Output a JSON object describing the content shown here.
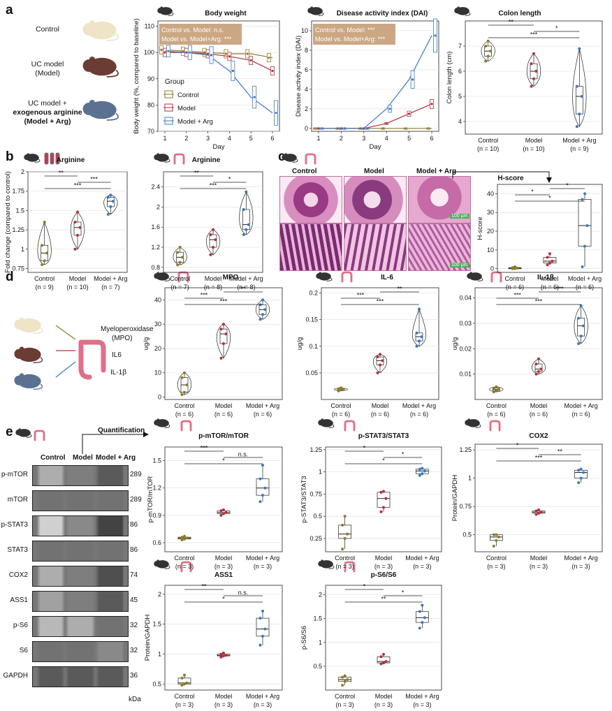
{
  "panel_letters": [
    "a",
    "b",
    "c",
    "d",
    "e"
  ],
  "colors": {
    "control": "#8c7a2a",
    "model": "#b2303a",
    "arg": "#3a78c0",
    "hl": "#c8a27c"
  },
  "panel_a": {
    "groups_side": {
      "control": "Control",
      "model_l1": "UC model",
      "model_l2": "(Model)",
      "arg_l1": "UC model +",
      "arg_l2": "exogenous arginine",
      "arg_l3": "(Model + Arg)"
    }
  },
  "chart_data": [
    {
      "id": "bw",
      "type": "line",
      "title": "Body weight",
      "xlabel": "Day",
      "ylabel": "Body weight (%, compared to baseline)",
      "x": [
        1,
        2,
        3,
        4,
        5,
        6
      ],
      "ylim": [
        70,
        112
      ],
      "yticks": [
        70,
        80,
        90,
        100,
        110
      ],
      "series": [
        {
          "name": "Control",
          "values": [
            101,
            100.5,
            100,
            99.5,
            99.5,
            98
          ]
        },
        {
          "name": "Model",
          "values": [
            100,
            100,
            99.5,
            98.5,
            97,
            93
          ]
        },
        {
          "name": "Model + Arg",
          "values": [
            100.5,
            100,
            99,
            93,
            83,
            77
          ]
        }
      ],
      "legend_title": "Group",
      "legend": [
        "Control",
        "Model",
        "Model + Arg"
      ],
      "annotation": [
        "Control vs. Model: n.s.",
        "Model vs. Model+Arg: ***"
      ]
    },
    {
      "id": "dai",
      "type": "line",
      "title": "Disease activity index (DAI)",
      "xlabel": "Day",
      "ylabel": "Disease activity index (DAI)",
      "x": [
        1,
        2,
        3,
        4,
        5,
        6
      ],
      "ylim": [
        -0.3,
        11
      ],
      "yticks": [
        0,
        2,
        4,
        6,
        8,
        10
      ],
      "series": [
        {
          "name": "Control",
          "values": [
            0,
            0,
            0,
            0,
            0,
            0
          ]
        },
        {
          "name": "Model",
          "values": [
            0,
            0,
            0,
            0.5,
            1.5,
            2.5
          ]
        },
        {
          "name": "Model + Arg",
          "values": [
            0,
            0,
            0,
            2,
            5,
            9.5
          ]
        }
      ],
      "annotation": [
        "Control vs. Model: ***",
        "Model vs. Model+Arg: ***"
      ]
    },
    {
      "id": "colon",
      "type": "violin",
      "title": "Colon length",
      "ylabel": "Colon length (cm)",
      "ylim": [
        3.5,
        8
      ],
      "yticks": [
        4,
        5,
        6,
        7
      ],
      "categories": [
        "Control",
        "Model",
        "Model + Arg"
      ],
      "n": [
        "(n = 10)",
        "(n = 10)",
        "(n = 9)"
      ],
      "box": [
        [
          6.4,
          6.6,
          6.8,
          7.0,
          7.2
        ],
        [
          5.4,
          5.7,
          6.0,
          6.3,
          6.7
        ],
        [
          3.8,
          4.3,
          5.0,
          5.4,
          6.9
        ]
      ],
      "sig": [
        {
          "a": 0,
          "b": 1,
          "t": "**"
        },
        {
          "a": 1,
          "b": 2,
          "t": "*"
        },
        {
          "a": 0,
          "b": 2,
          "t": "***"
        }
      ]
    },
    {
      "id": "argser",
      "type": "violin",
      "title": "Arginine",
      "ylabel": "Fold change (compared to control)",
      "ylim": [
        0.7,
        2.0
      ],
      "yticks": [
        0.75,
        1.0,
        1.25,
        1.5,
        1.75,
        2.0
      ],
      "categories": [
        "Control",
        "Model",
        "Model + Arg"
      ],
      "n": [
        "(n = 9)",
        "(n = 10)",
        "(n = 7)"
      ],
      "box": [
        [
          0.8,
          0.85,
          0.95,
          1.05,
          1.35
        ],
        [
          1.0,
          1.18,
          1.28,
          1.35,
          1.48
        ],
        [
          1.45,
          1.55,
          1.62,
          1.67,
          1.7
        ]
      ],
      "sig": [
        {
          "a": 0,
          "b": 1,
          "t": "**"
        },
        {
          "a": 1,
          "b": 2,
          "t": "***"
        },
        {
          "a": 0,
          "b": 2,
          "t": "***"
        }
      ]
    },
    {
      "id": "argcol",
      "type": "violin",
      "title": "Arginine",
      "ylabel": "",
      "ylim": [
        0.7,
        2.7
      ],
      "yticks": [
        0.8,
        1.2,
        1.6,
        2.0,
        2.4
      ],
      "categories": [
        "Control",
        "Model",
        "Model + Arg"
      ],
      "n": [
        "(n = 7)",
        "(n = 8)",
        "(n = 8)"
      ],
      "box": [
        [
          0.85,
          0.9,
          1.0,
          1.1,
          1.2
        ],
        [
          1.05,
          1.2,
          1.35,
          1.45,
          1.55
        ],
        [
          1.45,
          1.55,
          1.65,
          1.95,
          2.3
        ]
      ],
      "sig": [
        {
          "a": 0,
          "b": 1,
          "t": "**"
        },
        {
          "a": 1,
          "b": 2,
          "t": "*"
        },
        {
          "a": 0,
          "b": 2,
          "t": "***"
        }
      ]
    },
    {
      "id": "hscore",
      "type": "box",
      "title": "H-score",
      "ylabel": "H-score",
      "ylim": [
        -2,
        45
      ],
      "yticks": [
        0,
        10,
        20,
        30,
        40
      ],
      "categories": [
        "Control",
        "Model",
        "Model + Arg"
      ],
      "n": [
        "(n = 6)",
        "(n = 6)",
        "(n = 6)"
      ],
      "box": [
        [
          0,
          0,
          0.3,
          0.5,
          1
        ],
        [
          2,
          3,
          4,
          6,
          8
        ],
        [
          1,
          12,
          23,
          37,
          40
        ]
      ],
      "sig": [
        {
          "a": 1,
          "b": 2,
          "t": "*"
        },
        {
          "a": 0,
          "b": 1,
          "t": "*"
        },
        {
          "a": 0,
          "b": 2,
          "t": "*"
        }
      ]
    },
    {
      "id": "mpo",
      "type": "violin",
      "title": "MPO",
      "ylabel": "ug/g",
      "ylim": [
        -1,
        45
      ],
      "yticks": [
        0,
        10,
        20,
        30,
        40
      ],
      "categories": [
        "Control",
        "Model",
        "Model + Arg"
      ],
      "n": [
        "(n = 6)",
        "(n = 6)",
        "(n = 6)"
      ],
      "box": [
        [
          1,
          2,
          5,
          8,
          10
        ],
        [
          16,
          22,
          26,
          28,
          30
        ],
        [
          32,
          34,
          36,
          38,
          40
        ]
      ],
      "sig": [
        {
          "a": 1,
          "b": 2,
          "t": "**"
        },
        {
          "a": 0,
          "b": 1,
          "t": "***"
        },
        {
          "a": 0,
          "b": 2,
          "t": "***"
        }
      ]
    },
    {
      "id": "il6",
      "type": "violin",
      "title": "IL-6",
      "ylabel": "ug/g",
      "ylim": [
        0,
        0.21
      ],
      "yticks": [
        0.05,
        0.1,
        0.15,
        0.2
      ],
      "categories": [
        "Control",
        "Model",
        "Model + Arg"
      ],
      "n": [
        "(n = 6)",
        "(n = 6)",
        "(n = 6)"
      ],
      "box": [
        [
          0.016,
          0.018,
          0.019,
          0.02,
          0.022
        ],
        [
          0.05,
          0.065,
          0.073,
          0.08,
          0.085
        ],
        [
          0.1,
          0.11,
          0.118,
          0.125,
          0.17
        ]
      ],
      "sig": [
        {
          "a": 1,
          "b": 2,
          "t": "**"
        },
        {
          "a": 0,
          "b": 1,
          "t": "***"
        },
        {
          "a": 0,
          "b": 2,
          "t": "***"
        }
      ]
    },
    {
      "id": "il1b",
      "type": "violin",
      "title": "IL-1β",
      "ylabel": "ug/g",
      "ylim": [
        0,
        0.044
      ],
      "yticks": [
        0.01,
        0.02,
        0.03,
        0.04
      ],
      "categories": [
        "Control",
        "Model",
        "Model + Arg"
      ],
      "n": [
        "(n = 6)",
        "(n = 6)",
        "(n = 6)"
      ],
      "box": [
        [
          0.003,
          0.0035,
          0.004,
          0.0045,
          0.005
        ],
        [
          0.01,
          0.011,
          0.012,
          0.014,
          0.016
        ],
        [
          0.022,
          0.025,
          0.029,
          0.032,
          0.037
        ]
      ],
      "sig": [
        {
          "a": 1,
          "b": 2,
          "t": "***"
        },
        {
          "a": 0,
          "b": 1,
          "t": "***"
        },
        {
          "a": 0,
          "b": 2,
          "t": "***"
        }
      ]
    },
    {
      "id": "mtor",
      "type": "box",
      "title": "p-mTOR/mTOR",
      "ylabel": "p-mTOR/mTOR",
      "ylim": [
        0.5,
        1.65
      ],
      "yticks": [
        0.6,
        0.9,
        1.2,
        1.5
      ],
      "categories": [
        "Control",
        "Model",
        "Model + Arg"
      ],
      "n": [
        "(n = 3)",
        "(n = 3)",
        "(n = 3)"
      ],
      "box": [
        [
          0.63,
          0.64,
          0.65,
          0.66,
          0.67
        ],
        [
          0.9,
          0.92,
          0.93,
          0.95,
          0.96
        ],
        [
          1.05,
          1.12,
          1.2,
          1.3,
          1.45
        ]
      ],
      "sig": [
        {
          "a": 0,
          "b": 1,
          "t": "***"
        },
        {
          "a": 1,
          "b": 2,
          "t": "n.s."
        },
        {
          "a": 0,
          "b": 2,
          "t": "*"
        }
      ]
    },
    {
      "id": "stat3",
      "type": "box",
      "title": "p-STAT3/STAT3",
      "ylabel": "p-STAT3/STAT3",
      "ylim": [
        0.1,
        1.28
      ],
      "yticks": [
        0.25,
        0.5,
        0.75,
        1.0,
        1.25
      ],
      "categories": [
        "Control",
        "Model",
        "Model + Arg"
      ],
      "n": [
        "(n = 3)",
        "(n = 3)",
        "(n = 3)"
      ],
      "box": [
        [
          0.13,
          0.25,
          0.3,
          0.4,
          0.5
        ],
        [
          0.55,
          0.6,
          0.7,
          0.77,
          0.78
        ],
        [
          0.96,
          0.98,
          1.01,
          1.03,
          1.04
        ]
      ],
      "sig": [
        {
          "a": 0,
          "b": 1,
          "t": "*"
        },
        {
          "a": 1,
          "b": 2,
          "t": "*"
        },
        {
          "a": 0,
          "b": 2,
          "t": "*"
        }
      ]
    },
    {
      "id": "cox2",
      "type": "box",
      "title": "COX2",
      "ylabel": "Protein/GAPDH",
      "ylim": [
        0.35,
        1.3
      ],
      "yticks": [
        0.5,
        0.75,
        1.0,
        1.25
      ],
      "categories": [
        "Control",
        "Model",
        "Model + Arg"
      ],
      "n": [
        "(n = 3)",
        "(n = 3)",
        "(n = 3)"
      ],
      "box": [
        [
          0.4,
          0.45,
          0.48,
          0.5,
          0.5
        ],
        [
          0.68,
          0.69,
          0.7,
          0.71,
          0.72
        ],
        [
          0.96,
          1.0,
          1.05,
          1.07,
          1.08
        ]
      ],
      "sig": [
        {
          "a": 0,
          "b": 1,
          "t": "*"
        },
        {
          "a": 1,
          "b": 2,
          "t": "**"
        },
        {
          "a": 0,
          "b": 2,
          "t": "***"
        }
      ]
    },
    {
      "id": "ass1",
      "type": "box",
      "title": "ASS1",
      "ylabel": "Protein/GAPDH",
      "ylim": [
        0.4,
        2.15
      ],
      "yticks": [
        0.5,
        1.0,
        1.5,
        2.0
      ],
      "categories": [
        "Control",
        "Model",
        "Model + Arg"
      ],
      "n": [
        "(n = 3)",
        "(n = 3)",
        "(n = 3)"
      ],
      "box": [
        [
          0.48,
          0.5,
          0.52,
          0.6,
          0.65
        ],
        [
          0.95,
          0.97,
          0.98,
          1.0,
          1.02
        ],
        [
          1.15,
          1.3,
          1.42,
          1.6,
          1.72
        ]
      ],
      "sig": [
        {
          "a": 0,
          "b": 1,
          "t": "**"
        },
        {
          "a": 1,
          "b": 2,
          "t": "n.s."
        },
        {
          "a": 0,
          "b": 2,
          "t": "*"
        }
      ]
    },
    {
      "id": "s6",
      "type": "box",
      "title": "p-S6/S6",
      "ylabel": "p-S6/S6",
      "ylim": [
        0,
        2.2
      ],
      "yticks": [
        0.5,
        1.0,
        1.5,
        2.0
      ],
      "categories": [
        "Control",
        "Model",
        "Model + Arg"
      ],
      "n": [
        "(n = 3)",
        "(n = 3)",
        "(n = 3)"
      ],
      "box": [
        [
          0.1,
          0.18,
          0.22,
          0.27,
          0.3
        ],
        [
          0.55,
          0.57,
          0.6,
          0.7,
          0.75
        ],
        [
          1.3,
          1.42,
          1.52,
          1.65,
          1.78
        ]
      ],
      "sig": [
        {
          "a": 0,
          "b": 1,
          "t": "*"
        },
        {
          "a": 1,
          "b": 2,
          "t": "*"
        },
        {
          "a": 0,
          "b": 2,
          "t": "**"
        }
      ]
    }
  ],
  "panel_c": {
    "cols": [
      "Control",
      "Model",
      "Model + Arg"
    ],
    "scalebar": "100 μm"
  },
  "panel_d": {
    "labels": [
      "Myeloperoxidase",
      "(MPO)",
      "IL6",
      "IL-1β"
    ]
  },
  "panel_e": {
    "header": [
      "Control",
      "Model",
      "Model + Arg"
    ],
    "quant": "Quantification",
    "kda": "kDa",
    "bands": [
      {
        "name": "p-mTOR",
        "kda": "289"
      },
      {
        "name": "mTOR",
        "kda": "289"
      },
      {
        "name": "p-STAT3",
        "kda": "86"
      },
      {
        "name": "STAT3",
        "kda": "86"
      },
      {
        "name": "COX2",
        "kda": "74"
      },
      {
        "name": "ASS1",
        "kda": "45"
      },
      {
        "name": "p-S6",
        "kda": "32"
      },
      {
        "name": "S6",
        "kda": "32"
      },
      {
        "name": "GAPDH",
        "kda": "36"
      }
    ]
  }
}
